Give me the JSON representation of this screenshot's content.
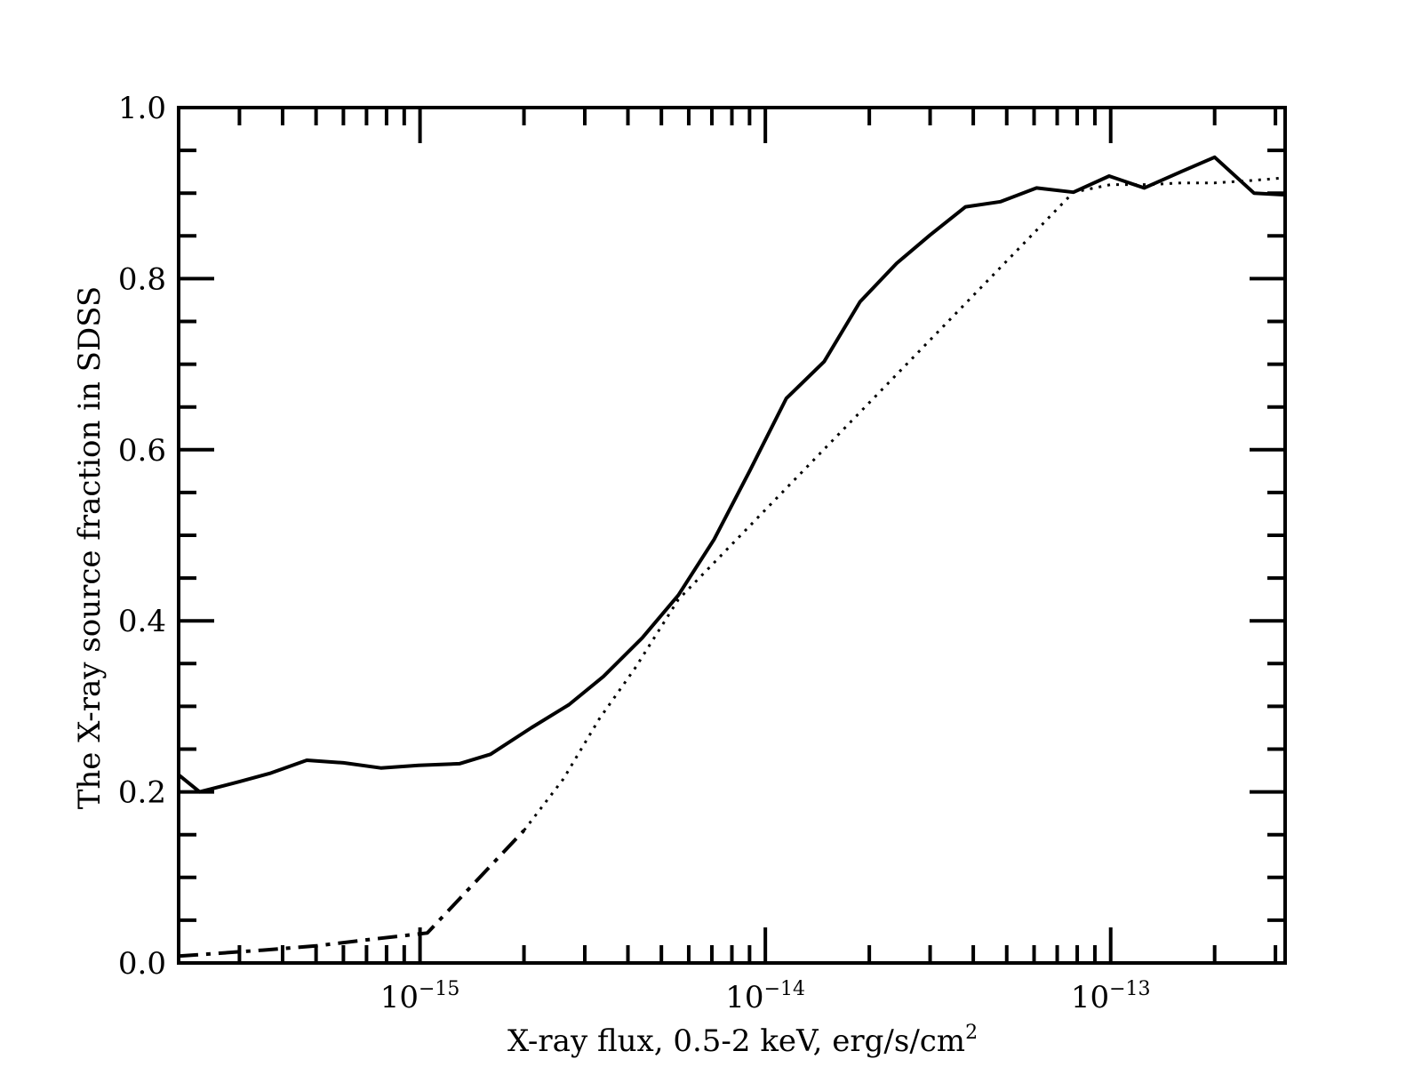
{
  "chart_data": {
    "type": "line",
    "title": "",
    "xlabel": "X-ray flux, 0.5-2 keV, erg/s/cm",
    "xlabel_sup": "2",
    "ylabel": "The X-ray source fraction in SDSS",
    "xscale": "log",
    "xlim": [
      2e-16,
      3.2e-13
    ],
    "ylim": [
      0.0,
      1.0
    ],
    "grid": false,
    "legend": "none",
    "x_ticks": [
      {
        "value": 1e-15,
        "base": "10",
        "exp": "−15"
      },
      {
        "value": 1e-14,
        "base": "10",
        "exp": "−14"
      },
      {
        "value": 1e-13,
        "base": "10",
        "exp": "−13"
      }
    ],
    "y_ticks": [
      {
        "value": 0.0,
        "label": "0.0"
      },
      {
        "value": 0.2,
        "label": "0.2"
      },
      {
        "value": 0.4,
        "label": "0.4"
      },
      {
        "value": 0.6,
        "label": "0.6"
      },
      {
        "value": 0.8,
        "label": "0.8"
      },
      {
        "value": 1.0,
        "label": "1.0"
      }
    ],
    "series": [
      {
        "style": "solid",
        "color": "#000000",
        "x": [
          2e-16,
          2.3e-16,
          3e-16,
          3.7e-16,
          4.7e-16,
          6e-16,
          7.7e-16,
          9.9e-16,
          1.3e-15,
          1.6e-15,
          2.1e-15,
          2.7e-15,
          3.4e-15,
          4.4e-15,
          5.6e-15,
          7.1e-15,
          9e-15,
          1.15e-14,
          1.48e-14,
          1.88e-14,
          2.4e-14,
          3e-14,
          3.8e-14,
          4.8e-14,
          6.1e-14,
          7.8e-14,
          9.9e-14,
          1.25e-13,
          1.6e-13,
          2e-13,
          2.6e-13,
          3.2e-13
        ],
        "y": [
          0.22,
          0.2,
          0.212,
          0.222,
          0.237,
          0.234,
          0.228,
          0.231,
          0.233,
          0.244,
          0.275,
          0.302,
          0.335,
          0.38,
          0.43,
          0.495,
          0.575,
          0.66,
          0.703,
          0.773,
          0.818,
          0.851,
          0.884,
          0.89,
          0.906,
          0.901,
          0.92,
          0.906,
          0.925,
          0.942,
          0.9,
          0.898
        ]
      },
      {
        "style": "dotted",
        "color": "#000000",
        "x": [
          2e-15,
          2.6e-15,
          3.3e-15,
          4.2e-15,
          5.6e-15,
          7.8e-14,
          1e-13,
          1.3e-13,
          1.6e-13,
          2e-13,
          2.6e-13,
          3.2e-13
        ],
        "y": [
          0.155,
          0.215,
          0.285,
          0.345,
          0.425,
          0.901,
          0.91,
          0.91,
          0.912,
          0.912,
          0.915,
          0.918
        ]
      },
      {
        "style": "dashdot",
        "color": "#000000",
        "x": [
          2e-16,
          3.5e-16,
          5e-16,
          7e-16,
          1.05e-15,
          2e-15
        ],
        "y": [
          0.008,
          0.015,
          0.02,
          0.027,
          0.035,
          0.155
        ]
      }
    ]
  }
}
